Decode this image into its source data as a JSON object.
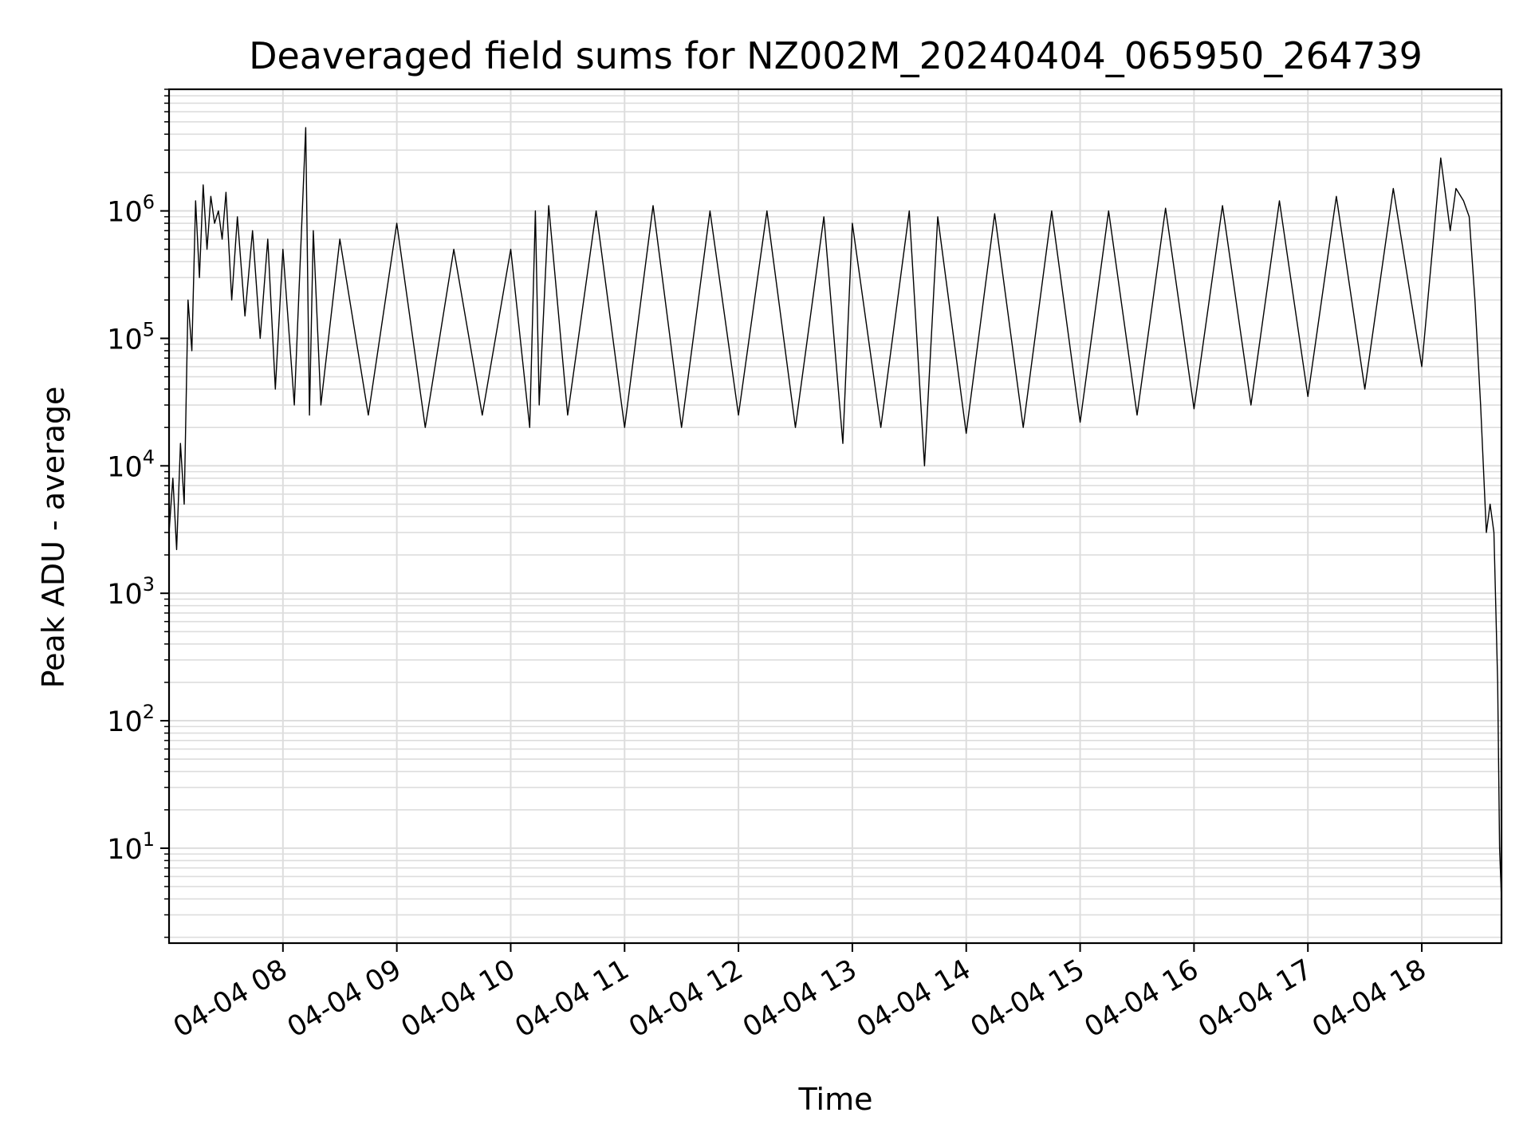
{
  "chart_data": {
    "type": "line",
    "title": "Deaveraged field sums for NZ002M_20240404_065950_264739",
    "xlabel": "Time",
    "ylabel": "Peak ADU - average",
    "y_scale": "log",
    "ylim": [
      1.8,
      9000000
    ],
    "xlim": [
      "04-04 07:00",
      "04-04 18:42"
    ],
    "grid": true,
    "line_color": "#000000",
    "grid_color": "#dddddd",
    "x_ticks": [
      {
        "label": "04-04 08",
        "time": "04-04 08:00"
      },
      {
        "label": "04-04 09",
        "time": "04-04 09:00"
      },
      {
        "label": "04-04 10",
        "time": "04-04 10:00"
      },
      {
        "label": "04-04 11",
        "time": "04-04 11:00"
      },
      {
        "label": "04-04 12",
        "time": "04-04 12:00"
      },
      {
        "label": "04-04 13",
        "time": "04-04 13:00"
      },
      {
        "label": "04-04 14",
        "time": "04-04 14:00"
      },
      {
        "label": "04-04 15",
        "time": "04-04 15:00"
      },
      {
        "label": "04-04 16",
        "time": "04-04 16:00"
      },
      {
        "label": "04-04 17",
        "time": "04-04 17:00"
      },
      {
        "label": "04-04 18",
        "time": "04-04 18:00"
      }
    ],
    "y_ticks": [
      {
        "base": "10",
        "exp": "1",
        "value": 10
      },
      {
        "base": "10",
        "exp": "2",
        "value": 100
      },
      {
        "base": "10",
        "exp": "3",
        "value": 1000
      },
      {
        "base": "10",
        "exp": "4",
        "value": 10000
      },
      {
        "base": "10",
        "exp": "5",
        "value": 100000
      },
      {
        "base": "10",
        "exp": "6",
        "value": 1000000
      }
    ],
    "series": [
      {
        "x": [
          "04-04 07:00",
          "04-04 07:02",
          "04-04 07:04",
          "04-04 07:06",
          "04-04 07:08",
          "04-04 07:10",
          "04-04 07:12",
          "04-04 07:14",
          "04-04 07:16",
          "04-04 07:18",
          "04-04 07:20",
          "04-04 07:22",
          "04-04 07:24",
          "04-04 07:26",
          "04-04 07:28",
          "04-04 07:30",
          "04-04 07:33",
          "04-04 07:36",
          "04-04 07:40",
          "04-04 07:44",
          "04-04 07:48",
          "04-04 07:52",
          "04-04 07:56",
          "04-04 08:00",
          "04-04 08:06",
          "04-04 08:12",
          "04-04 08:14",
          "04-04 08:16",
          "04-04 08:20",
          "04-04 08:30",
          "04-04 08:45",
          "04-04 09:00",
          "04-04 09:15",
          "04-04 09:30",
          "04-04 09:45",
          "04-04 10:00",
          "04-04 10:10",
          "04-04 10:13",
          "04-04 10:15",
          "04-04 10:20",
          "04-04 10:30",
          "04-04 10:45",
          "04-04 11:00",
          "04-04 11:15",
          "04-04 11:30",
          "04-04 11:45",
          "04-04 12:00",
          "04-04 12:15",
          "04-04 12:30",
          "04-04 12:45",
          "04-04 12:55",
          "04-04 13:00",
          "04-04 13:15",
          "04-04 13:30",
          "04-04 13:38",
          "04-04 13:45",
          "04-04 14:00",
          "04-04 14:15",
          "04-04 14:30",
          "04-04 14:45",
          "04-04 15:00",
          "04-04 15:15",
          "04-04 15:30",
          "04-04 15:45",
          "04-04 16:00",
          "04-04 16:15",
          "04-04 16:30",
          "04-04 16:45",
          "04-04 17:00",
          "04-04 17:15",
          "04-04 17:30",
          "04-04 17:45",
          "04-04 18:00",
          "04-04 18:10",
          "04-04 18:15",
          "04-04 18:18",
          "04-04 18:22",
          "04-04 18:25",
          "04-04 18:28",
          "04-04 18:31",
          "04-04 18:34",
          "04-04 18:36",
          "04-04 18:38",
          "04-04 18:40",
          "04-04 18:41",
          "04-04 18:42"
        ],
        "y": [
          3000,
          8000,
          2200,
          15000,
          5000,
          200000,
          80000,
          1200000,
          300000,
          1600000,
          500000,
          1300000,
          800000,
          1000000,
          600000,
          1400000,
          200000,
          900000,
          150000,
          700000,
          100000,
          600000,
          40000,
          500000,
          30000,
          4500000,
          25000,
          700000,
          30000,
          600000,
          25000,
          800000,
          20000,
          500000,
          25000,
          500000,
          20000,
          1000000,
          30000,
          1100000,
          25000,
          1000000,
          20000,
          1100000,
          20000,
          1000000,
          25000,
          1000000,
          20000,
          900000,
          15000,
          800000,
          20000,
          1000000,
          10000,
          900000,
          18000,
          950000,
          20000,
          1000000,
          22000,
          1000000,
          25000,
          1050000,
          28000,
          1100000,
          30000,
          1200000,
          35000,
          1300000,
          40000,
          1500000,
          60000,
          2600000,
          700000,
          1500000,
          1200000,
          900000,
          200000,
          30000,
          3000,
          5000,
          3000,
          200,
          10,
          4
        ]
      }
    ]
  }
}
